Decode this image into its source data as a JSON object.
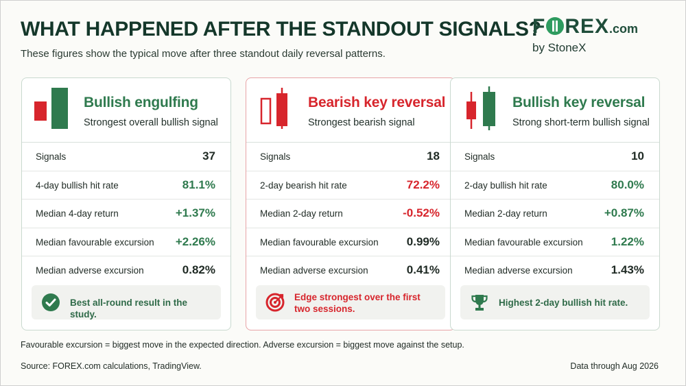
{
  "header": {
    "title": "WHAT HAPPENED AFTER THE STANDOUT SIGNALS?",
    "subtitle": "These figures show the typical move after three standout daily reversal patterns."
  },
  "logo": {
    "word_left": "F",
    "word_right": "REX",
    "dotcom": ".com",
    "byline": "by StoneX"
  },
  "colors": {
    "bullish_green": "#2f7a4e",
    "bearish_red": "#d7252c",
    "title_green": "#14372a"
  },
  "cards": [
    {
      "icon": "bullish-engulfing-candles-icon",
      "title": "Bullish engulfing",
      "subtitle": "Strongest overall bullish signal",
      "rows": [
        {
          "label": "Signals",
          "value": "37"
        },
        {
          "label": "4-day bullish hit rate",
          "value": "81.1%"
        },
        {
          "label": "Median 4-day return",
          "value": "+1.37%"
        },
        {
          "label": "Median favourable excursion",
          "value": "+2.26%"
        },
        {
          "label": "Median adverse excursion",
          "value": "0.82%"
        }
      ],
      "note_icon": "check-circle-icon",
      "note": "Best all-round result in the study."
    },
    {
      "icon": "bearish-key-reversal-candles-icon",
      "title": "Bearish key reversal",
      "subtitle": "Strongest bearish signal",
      "rows": [
        {
          "label": "Signals",
          "value": "18"
        },
        {
          "label": "2-day bearish hit rate",
          "value": "72.2%"
        },
        {
          "label": "Median 2-day return",
          "value": "-0.52%"
        },
        {
          "label": "Median favourable excursion",
          "value": "0.99%"
        },
        {
          "label": "Median adverse excursion",
          "value": "0.41%"
        }
      ],
      "note_icon": "target-icon",
      "note": "Edge strongest over the first two sessions."
    },
    {
      "icon": "bullish-key-reversal-candles-icon",
      "title": "Bullish key reversal",
      "subtitle": "Strong short-term bullish signal",
      "rows": [
        {
          "label": "Signals",
          "value": "10"
        },
        {
          "label": "2-day bullish hit rate",
          "value": "80.0%"
        },
        {
          "label": "Median 2-day return",
          "value": "+0.87%"
        },
        {
          "label": "Median favourable excursion",
          "value": "1.22%"
        },
        {
          "label": "Median adverse excursion",
          "value": "1.43%"
        }
      ],
      "note_icon": "trophy-icon",
      "note": "Highest 2-day bullish hit rate."
    }
  ],
  "footer": {
    "footnote": "Favourable excursion = biggest move in the expected direction. Adverse excursion = biggest move against the setup.",
    "source": "Source: FOREX.com calculations, TradingView.",
    "as_of": "Data through Aug 2026"
  }
}
